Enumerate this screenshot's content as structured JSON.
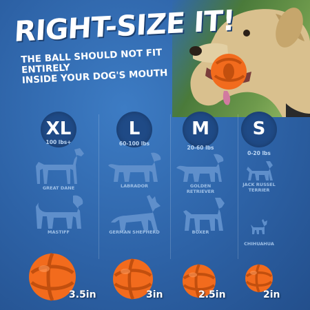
{
  "header": {
    "title": "RIGHT-SIZE IT!",
    "subtitle_line1": "THE BALL SHOULD NOT FIT ENTIRELY",
    "subtitle_line2": "INSIDE YOUR DOG'S MOUTH"
  },
  "sizes": [
    {
      "letter": "XL",
      "weight": "100 lbs+",
      "breed_top": "GREAT DANE",
      "breed_bottom": "MASTIFF",
      "ball": "3.5in"
    },
    {
      "letter": "L",
      "weight": "60-100 lbs",
      "breed_top": "LABRADOR",
      "breed_bottom": "GERMAN SHEPHERD",
      "ball": "3in"
    },
    {
      "letter": "M",
      "weight": "20-60 lbs",
      "breed_top_line1": "GOLDEN",
      "breed_top_line2": "RETRIEVER",
      "breed_bottom": "BOXER",
      "ball": "2.5in"
    },
    {
      "letter": "S",
      "weight": "0-20 lbs",
      "breed_top_line1": "JACK RUSSEL",
      "breed_top_line2": "TERRIER",
      "breed_bottom": "CHIHUAHUA",
      "ball": "2in"
    }
  ],
  "colors": {
    "background": "#2e63a8",
    "badge": "#1f4a86",
    "ball_orange": "#f26b1d",
    "dog_silhouette": "#5f8fcb"
  },
  "icons": [
    "dog-with-ball-photo",
    "great-dane-silhouette",
    "mastiff-silhouette",
    "labrador-silhouette",
    "german-shepherd-silhouette",
    "golden-retriever-silhouette",
    "boxer-silhouette",
    "jack-russell-silhouette",
    "chihuahua-silhouette",
    "orange-ball"
  ]
}
